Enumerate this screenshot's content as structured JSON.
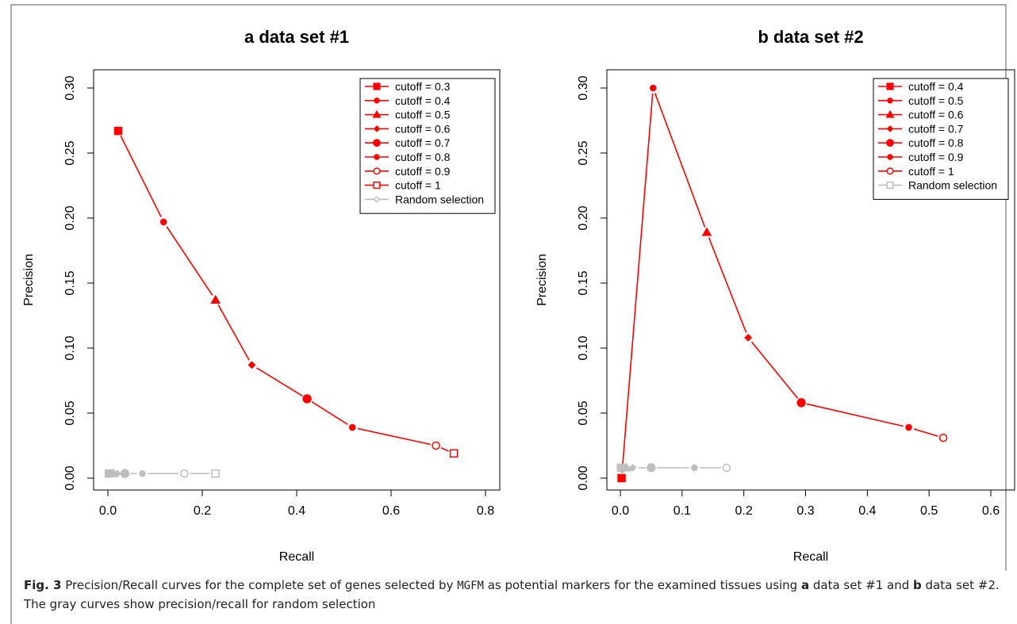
{
  "caption": {
    "fig_label": "Fig. 3",
    "text_1": " Precision/Recall curves for the complete set of genes selected by ",
    "method": "MGFM",
    "text_2": " as potential markers for the examined tissues using ",
    "panel_a": "a",
    "text_3": " data set #1 and ",
    "panel_b": "b",
    "text_4": " data set #2. The gray curves show precision/recall for random selection"
  },
  "colors": {
    "precision_curve": "#ff0000",
    "random_curve": "#bebebe",
    "axis": "#000000"
  },
  "chart_data": [
    {
      "type": "line",
      "panel": "a",
      "title": "data set #1",
      "xlabel": "Recall",
      "ylabel": "Precision",
      "xlim": [
        0,
        0.8
      ],
      "ylim": [
        0,
        0.3
      ],
      "xticks": [
        "0.0",
        "0.2",
        "0.4",
        "0.6",
        "0.8"
      ],
      "yticks": [
        "0.00",
        "0.05",
        "0.10",
        "0.15",
        "0.20",
        "0.25",
        "0.30"
      ],
      "legend_position": "top-right",
      "series": [
        {
          "name": "precision",
          "color": "#ff0000",
          "points": [
            {
              "x": 0.022,
              "y": 0.267,
              "marker": "filled-square"
            },
            {
              "x": 0.118,
              "y": 0.197,
              "marker": "filled-circle-small"
            },
            {
              "x": 0.228,
              "y": 0.137,
              "marker": "filled-triangle"
            },
            {
              "x": 0.305,
              "y": 0.087,
              "marker": "filled-diamond"
            },
            {
              "x": 0.422,
              "y": 0.061,
              "marker": "filled-circle"
            },
            {
              "x": 0.518,
              "y": 0.039,
              "marker": "filled-circle-small"
            },
            {
              "x": 0.695,
              "y": 0.025,
              "marker": "open-circle"
            },
            {
              "x": 0.733,
              "y": 0.019,
              "marker": "open-square"
            }
          ]
        },
        {
          "name": "random",
          "color": "#bebebe",
          "points": [
            {
              "x": 0.002,
              "y": 0.0035,
              "marker": "filled-square"
            },
            {
              "x": 0.008,
              "y": 0.0035,
              "marker": "filled-circle-small"
            },
            {
              "x": 0.012,
              "y": 0.0035,
              "marker": "filled-triangle"
            },
            {
              "x": 0.02,
              "y": 0.0035,
              "marker": "filled-diamond"
            },
            {
              "x": 0.036,
              "y": 0.0035,
              "marker": "filled-circle"
            },
            {
              "x": 0.073,
              "y": 0.0035,
              "marker": "filled-circle-small"
            },
            {
              "x": 0.162,
              "y": 0.0035,
              "marker": "open-circle"
            },
            {
              "x": 0.228,
              "y": 0.0035,
              "marker": "open-square"
            }
          ]
        }
      ],
      "legend": [
        {
          "label": "cutoff = 0.3",
          "marker": "filled-square",
          "color": "#ff0000"
        },
        {
          "label": "cutoff = 0.4",
          "marker": "filled-circle-small",
          "color": "#ff0000"
        },
        {
          "label": "cutoff = 0.5",
          "marker": "filled-triangle",
          "color": "#ff0000"
        },
        {
          "label": "cutoff = 0.6",
          "marker": "filled-diamond",
          "color": "#ff0000"
        },
        {
          "label": "cutoff = 0.7",
          "marker": "filled-circle",
          "color": "#ff0000"
        },
        {
          "label": "cutoff = 0.8",
          "marker": "filled-circle-small",
          "color": "#ff0000"
        },
        {
          "label": "cutoff = 0.9",
          "marker": "open-circle",
          "color": "#ff0000"
        },
        {
          "label": "cutoff = 1",
          "marker": "open-square",
          "color": "#ff0000"
        },
        {
          "label": "Random selection",
          "marker": "open-diamond",
          "color": "#bebebe"
        }
      ]
    },
    {
      "type": "line",
      "panel": "b",
      "title": "data set #2",
      "xlabel": "Recall",
      "ylabel": "Precision",
      "xlim": [
        0,
        0.6
      ],
      "ylim": [
        0,
        0.3
      ],
      "xticks": [
        "0.0",
        "0.1",
        "0.2",
        "0.3",
        "0.4",
        "0.5",
        "0.6"
      ],
      "yticks": [
        "0.00",
        "0.05",
        "0.10",
        "0.15",
        "0.20",
        "0.25",
        "0.30"
      ],
      "legend_position": "top-right",
      "series": [
        {
          "name": "precision",
          "color": "#ff0000",
          "points": [
            {
              "x": 0.002,
              "y": 0.0,
              "marker": "filled-square"
            },
            {
              "x": 0.053,
              "y": 0.3,
              "marker": "filled-circle-small"
            },
            {
              "x": 0.14,
              "y": 0.189,
              "marker": "filled-triangle"
            },
            {
              "x": 0.207,
              "y": 0.108,
              "marker": "filled-diamond"
            },
            {
              "x": 0.293,
              "y": 0.058,
              "marker": "filled-circle"
            },
            {
              "x": 0.467,
              "y": 0.039,
              "marker": "filled-circle-small"
            },
            {
              "x": 0.523,
              "y": 0.031,
              "marker": "open-circle"
            }
          ]
        },
        {
          "name": "random",
          "color": "#bebebe",
          "points": [
            {
              "x": 0.001,
              "y": 0.008,
              "marker": "filled-square"
            },
            {
              "x": 0.005,
              "y": 0.008,
              "marker": "filled-circle-small"
            },
            {
              "x": 0.01,
              "y": 0.008,
              "marker": "filled-triangle"
            },
            {
              "x": 0.02,
              "y": 0.008,
              "marker": "filled-diamond"
            },
            {
              "x": 0.05,
              "y": 0.008,
              "marker": "filled-circle"
            },
            {
              "x": 0.12,
              "y": 0.008,
              "marker": "filled-circle-small"
            },
            {
              "x": 0.172,
              "y": 0.008,
              "marker": "open-circle"
            }
          ]
        }
      ],
      "legend": [
        {
          "label": "cutoff = 0.4",
          "marker": "filled-square",
          "color": "#ff0000"
        },
        {
          "label": "cutoff = 0.5",
          "marker": "filled-circle-small",
          "color": "#ff0000"
        },
        {
          "label": "cutoff = 0.6",
          "marker": "filled-triangle",
          "color": "#ff0000"
        },
        {
          "label": "cutoff = 0.7",
          "marker": "filled-diamond",
          "color": "#ff0000"
        },
        {
          "label": "cutoff = 0.8",
          "marker": "filled-circle",
          "color": "#ff0000"
        },
        {
          "label": "cutoff = 0.9",
          "marker": "filled-circle-small",
          "color": "#ff0000"
        },
        {
          "label": "cutoff = 1",
          "marker": "open-circle",
          "color": "#ff0000"
        },
        {
          "label": "Random selection",
          "marker": "open-square",
          "color": "#bebebe"
        }
      ]
    }
  ]
}
